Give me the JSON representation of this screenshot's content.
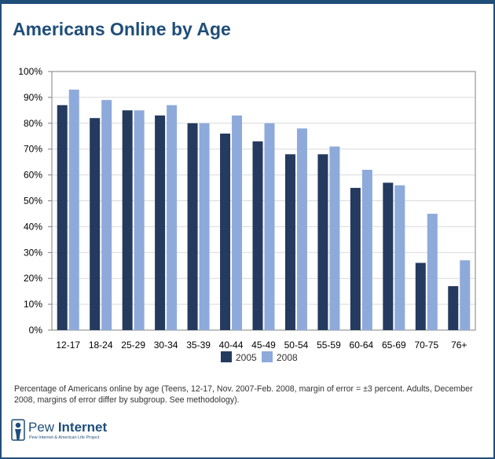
{
  "chart_data": {
    "type": "bar",
    "title": "Americans Online by Age",
    "categories": [
      "12-17",
      "18-24",
      "25-29",
      "30-34",
      "35-39",
      "40-44",
      "45-49",
      "50-54",
      "55-59",
      "60-64",
      "65-69",
      "70-75",
      "76+"
    ],
    "series": [
      {
        "name": "2005",
        "color": "#243a5e",
        "values": [
          87,
          82,
          85,
          83,
          80,
          76,
          73,
          68,
          68,
          55,
          57,
          26,
          17
        ]
      },
      {
        "name": "2008",
        "color": "#8eaadb",
        "values": [
          93,
          89,
          85,
          87,
          80,
          83,
          80,
          78,
          71,
          62,
          56,
          45,
          27
        ]
      }
    ],
    "yticks": [
      "0%",
      "10%",
      "20%",
      "30%",
      "40%",
      "50%",
      "60%",
      "70%",
      "80%",
      "90%",
      "100%"
    ],
    "ylim": [
      0,
      100
    ],
    "xlabel": "",
    "ylabel": "",
    "grid": true,
    "legend_position": "bottom-center"
  },
  "footnote": "Percentage of Americans online by age (Teens, 12-17, Nov. 2007-Feb. 2008, margin of error = ±3 percent. Adults, December 2008, margins of error differ by subgroup. See methodology).",
  "logo": {
    "name_first": "Pew",
    "name_second": "Internet",
    "tagline": "Pew Internet & American Life Project",
    "icon": "pew-figure-icon"
  },
  "colors": {
    "brand": "#1f4e79",
    "grid": "#d9d9d9"
  }
}
